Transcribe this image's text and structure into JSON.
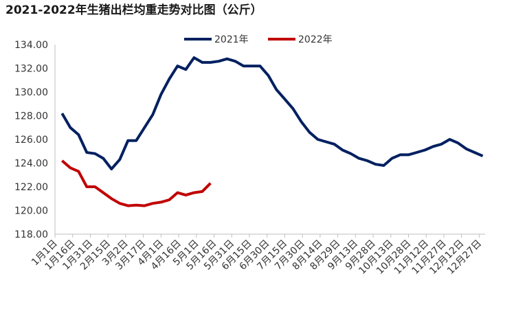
{
  "chart_data": {
    "type": "line",
    "title": "2021-2022年生猪出栏均重走势对比图（公斤）",
    "x": [
      6,
      13,
      20,
      27,
      34,
      41,
      48,
      55,
      62,
      69,
      76,
      83,
      90,
      97,
      104,
      111,
      118,
      125,
      132,
      139,
      146,
      153,
      160,
      167,
      174,
      181,
      188,
      195,
      202,
      209,
      216,
      223,
      230,
      237,
      244,
      251,
      258,
      265,
      272,
      279,
      286,
      293,
      300,
      307,
      314,
      321,
      328,
      335,
      342,
      349,
      356,
      363
    ],
    "series": [
      {
        "name": "2021年",
        "color": "#002060",
        "values": [
          128.2,
          127.0,
          126.4,
          124.9,
          124.8,
          124.4,
          123.5,
          124.3,
          125.9,
          125.9,
          127.0,
          128.1,
          129.8,
          131.1,
          132.2,
          131.9,
          132.9,
          132.5,
          132.5,
          132.6,
          132.8,
          132.6,
          132.2,
          132.2,
          132.2,
          131.4,
          130.2,
          129.4,
          128.6,
          127.5,
          126.6,
          126.0,
          125.8,
          125.6,
          125.1,
          124.8,
          124.4,
          124.2,
          123.9,
          123.8,
          124.4,
          124.7,
          124.7,
          124.9,
          125.1,
          125.4,
          125.6,
          126.0,
          125.7,
          125.2,
          124.9,
          124.6
        ]
      },
      {
        "name": "2022年",
        "color": "#c00000",
        "values": [
          124.2,
          123.6,
          123.3,
          122.0,
          122.0,
          121.5,
          121.0,
          120.6,
          120.4,
          120.45,
          120.4,
          120.6,
          120.7,
          120.9,
          121.5,
          121.3,
          121.5,
          121.6,
          122.3,
          null,
          null,
          null,
          null,
          null,
          null,
          null,
          null,
          null,
          null,
          null,
          null,
          null,
          null,
          null,
          null,
          null,
          null,
          null,
          null,
          null,
          null,
          null,
          null,
          null,
          null,
          null,
          null,
          null,
          null,
          null,
          null,
          null
        ]
      }
    ],
    "xlim": [
      0,
      365
    ],
    "xticks": [
      {
        "value": 0,
        "label": "1月1日"
      },
      {
        "value": 15,
        "label": "1月16日"
      },
      {
        "value": 30,
        "label": "1月31日"
      },
      {
        "value": 45,
        "label": "2月15日"
      },
      {
        "value": 60,
        "label": "3月2日"
      },
      {
        "value": 75,
        "label": "3月17日"
      },
      {
        "value": 90,
        "label": "4月1日"
      },
      {
        "value": 105,
        "label": "4月16日"
      },
      {
        "value": 120,
        "label": "5月1日"
      },
      {
        "value": 135,
        "label": "5月16日"
      },
      {
        "value": 150,
        "label": "5月31日"
      },
      {
        "value": 165,
        "label": "6月15日"
      },
      {
        "value": 180,
        "label": "6月30日"
      },
      {
        "value": 195,
        "label": "7月15日"
      },
      {
        "value": 210,
        "label": "7月30日"
      },
      {
        "value": 225,
        "label": "8月14日"
      },
      {
        "value": 240,
        "label": "8月29日"
      },
      {
        "value": 255,
        "label": "9月13日"
      },
      {
        "value": 270,
        "label": "9月28日"
      },
      {
        "value": 285,
        "label": "10月13日"
      },
      {
        "value": 300,
        "label": "10月28日"
      },
      {
        "value": 315,
        "label": "11月12日"
      },
      {
        "value": 330,
        "label": "11月27日"
      },
      {
        "value": 345,
        "label": "12月12日"
      },
      {
        "value": 360,
        "label": "12月27日"
      }
    ],
    "ylim": [
      118,
      134
    ],
    "yticks": [
      {
        "value": 118,
        "label": "118.00"
      },
      {
        "value": 120,
        "label": "120.00"
      },
      {
        "value": 122,
        "label": "122.00"
      },
      {
        "value": 124,
        "label": "124.00"
      },
      {
        "value": 126,
        "label": "126.00"
      },
      {
        "value": 128,
        "label": "128.00"
      },
      {
        "value": 130,
        "label": "130.00"
      },
      {
        "value": 132,
        "label": "132.00"
      },
      {
        "value": 134,
        "label": "134.00"
      }
    ],
    "grid": false,
    "legend": "top"
  }
}
